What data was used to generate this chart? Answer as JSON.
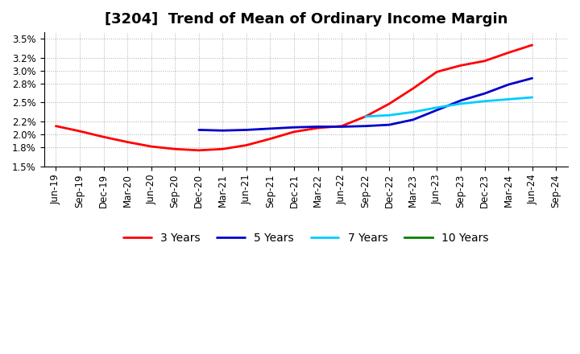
{
  "title": "[3204]  Trend of Mean of Ordinary Income Margin",
  "x_labels": [
    "Jun-19",
    "Sep-19",
    "Dec-19",
    "Mar-20",
    "Jun-20",
    "Sep-20",
    "Dec-20",
    "Mar-21",
    "Jun-21",
    "Sep-21",
    "Dec-21",
    "Mar-22",
    "Jun-22",
    "Sep-22",
    "Dec-22",
    "Mar-23",
    "Jun-23",
    "Sep-23",
    "Dec-23",
    "Mar-24",
    "Jun-24",
    "Sep-24"
  ],
  "ylim": [
    0.015,
    0.036
  ],
  "ytick_vals": [
    0.015,
    0.018,
    0.02,
    0.022,
    0.025,
    0.028,
    0.03,
    0.032,
    0.035
  ],
  "ytick_labels": [
    "1.5%",
    "1.8%",
    "2.0%",
    "2.2%",
    "2.5%",
    "2.8%",
    "3.0%",
    "3.2%",
    "3.5%"
  ],
  "series": [
    {
      "label": "3 Years",
      "color": "#FF0000",
      "data_x": [
        0,
        1,
        2,
        3,
        4,
        5,
        6,
        7,
        8,
        9,
        10,
        11,
        12,
        13,
        14,
        15,
        16,
        17,
        18,
        19,
        20
      ],
      "data_y": [
        0.0213,
        0.0205,
        0.0196,
        0.0188,
        0.0181,
        0.0177,
        0.0175,
        0.0177,
        0.0183,
        0.0193,
        0.0204,
        0.021,
        0.0213,
        0.0228,
        0.0248,
        0.0272,
        0.0298,
        0.0308,
        0.0315,
        0.0328,
        0.034
      ]
    },
    {
      "label": "5 Years",
      "color": "#0000CC",
      "data_x": [
        6,
        7,
        8,
        9,
        10,
        11,
        12,
        13,
        14,
        15,
        16,
        17,
        18,
        19,
        20
      ],
      "data_y": [
        0.0207,
        0.0206,
        0.0207,
        0.0209,
        0.0211,
        0.0212,
        0.0212,
        0.0213,
        0.0215,
        0.0223,
        0.0238,
        0.0253,
        0.0264,
        0.0278,
        0.0288
      ]
    },
    {
      "label": "7 Years",
      "color": "#00CCFF",
      "data_x": [
        13,
        14,
        15,
        16,
        17,
        18,
        19,
        20
      ],
      "data_y": [
        0.0228,
        0.023,
        0.0235,
        0.0242,
        0.0248,
        0.0252,
        0.0255,
        0.0258
      ]
    },
    {
      "label": "10 Years",
      "color": "#008000",
      "data_x": [],
      "data_y": []
    }
  ],
  "background_color": "#FFFFFF",
  "grid_color": "#999999",
  "title_fontsize": 13,
  "tick_fontsize": 8.5,
  "line_width": 2.0
}
